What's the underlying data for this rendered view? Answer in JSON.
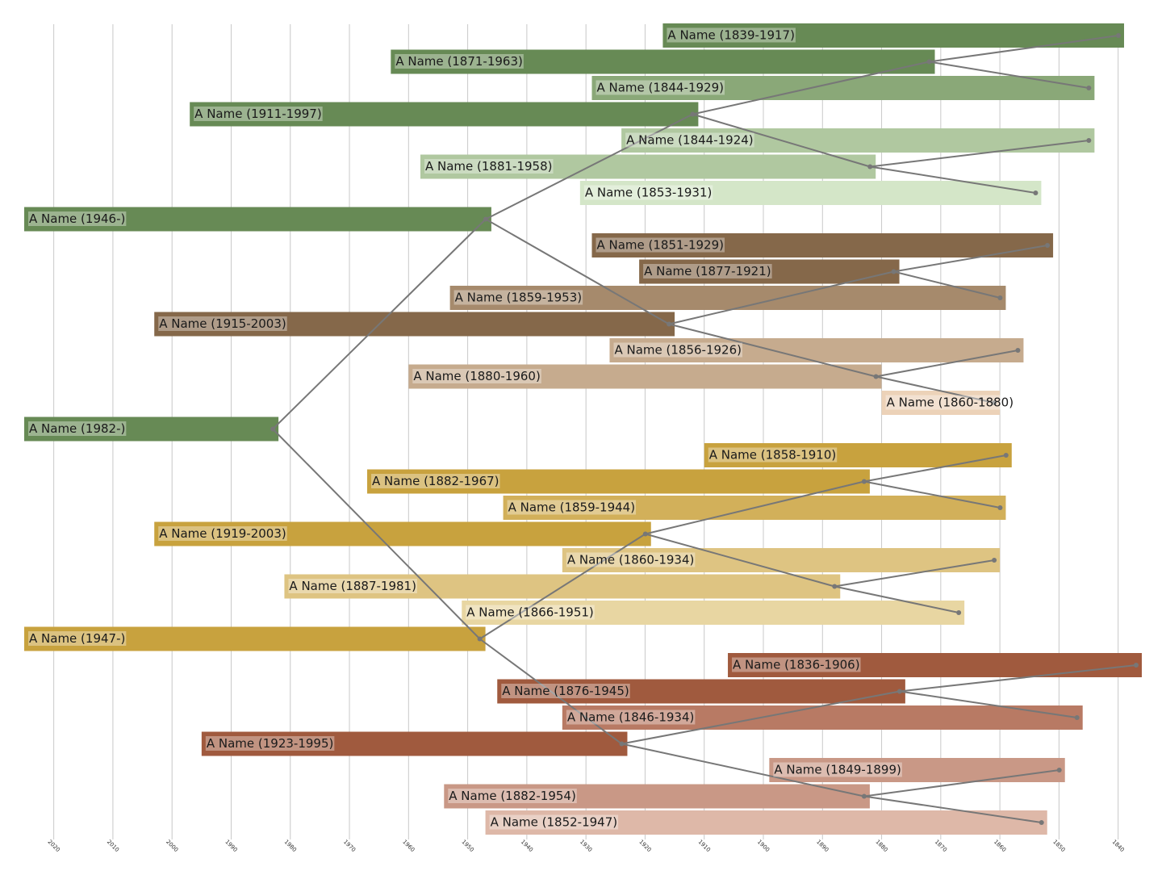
{
  "chart_data": {
    "type": "timeline",
    "categories": [
      "A Name (1839-1917)",
      "A Name (1871-1963)",
      "A Name (1844-1929)",
      "A Name (1911-1997)",
      "A Name (1844-1924)",
      "A Name (1881-1958)",
      "A Name (1853-1931)",
      "A Name (1946-)",
      "A Name (1851-1929)",
      "A Name (1877-1921)",
      "A Name (1859-1953)",
      "A Name (1915-2003)",
      "A Name (1856-1926)",
      "A Name (1880-1960)",
      "A Name (1860-1880)",
      "A Name (1982-)",
      "A Name (1858-1910)",
      "A Name (1882-1967)",
      "A Name (1859-1944)",
      "A Name (1919-2003)",
      "A Name (1860-1934)",
      "A Name (1887-1981)",
      "A Name (1866-1951)",
      "A Name (1947-)",
      "A Name (1836-1906)",
      "A Name (1876-1945)",
      "A Name (1846-1934)",
      "A Name (1923-1995)",
      "A Name (1849-1899)",
      "A Name (1882-1954)",
      "A Name (1852-1947)"
    ],
    "start": [
      1839,
      1871,
      1844,
      1911,
      1844,
      1881,
      1853,
      1946,
      1851,
      1877,
      1859,
      1915,
      1856,
      1880,
      1860,
      1982,
      1858,
      1882,
      1859,
      1919,
      1860,
      1887,
      1866,
      1947,
      1836,
      1876,
      1846,
      1923,
      1849,
      1882,
      1852
    ],
    "end": [
      1917,
      1963,
      1929,
      1997,
      1924,
      1958,
      1931,
      null,
      1929,
      1921,
      1953,
      2003,
      1926,
      1960,
      1880,
      null,
      1910,
      1967,
      1944,
      2003,
      1934,
      1981,
      1951,
      null,
      1906,
      1945,
      1934,
      1995,
      1899,
      1954,
      1947
    ],
    "colors": [
      "#678a55",
      "#678a55",
      "#8aa878",
      "#678a55",
      "#b0c8a0",
      "#b0c8a0",
      "#d4e6c8",
      "#678a55",
      "#85684a",
      "#85684a",
      "#a68a6c",
      "#85684a",
      "#c6ab8e",
      "#c6ab8e",
      "#ecd2b8",
      "#678a55",
      "#c8a23e",
      "#c8a23e",
      "#d2b05a",
      "#c8a23e",
      "#dec482",
      "#dec482",
      "#e8d6a2",
      "#c8a23e",
      "#a05a3e",
      "#a05a3e",
      "#b87a64",
      "#a05a3e",
      "#c99886",
      "#c99886",
      "#deb8a8"
    ],
    "xlim": [
      2025,
      1836
    ],
    "xticks": [
      2020,
      2010,
      2000,
      1990,
      1980,
      1970,
      1960,
      1950,
      1940,
      1930,
      1920,
      1910,
      1900,
      1890,
      1880,
      1870,
      1860,
      1850,
      1840
    ],
    "grid": true
  }
}
